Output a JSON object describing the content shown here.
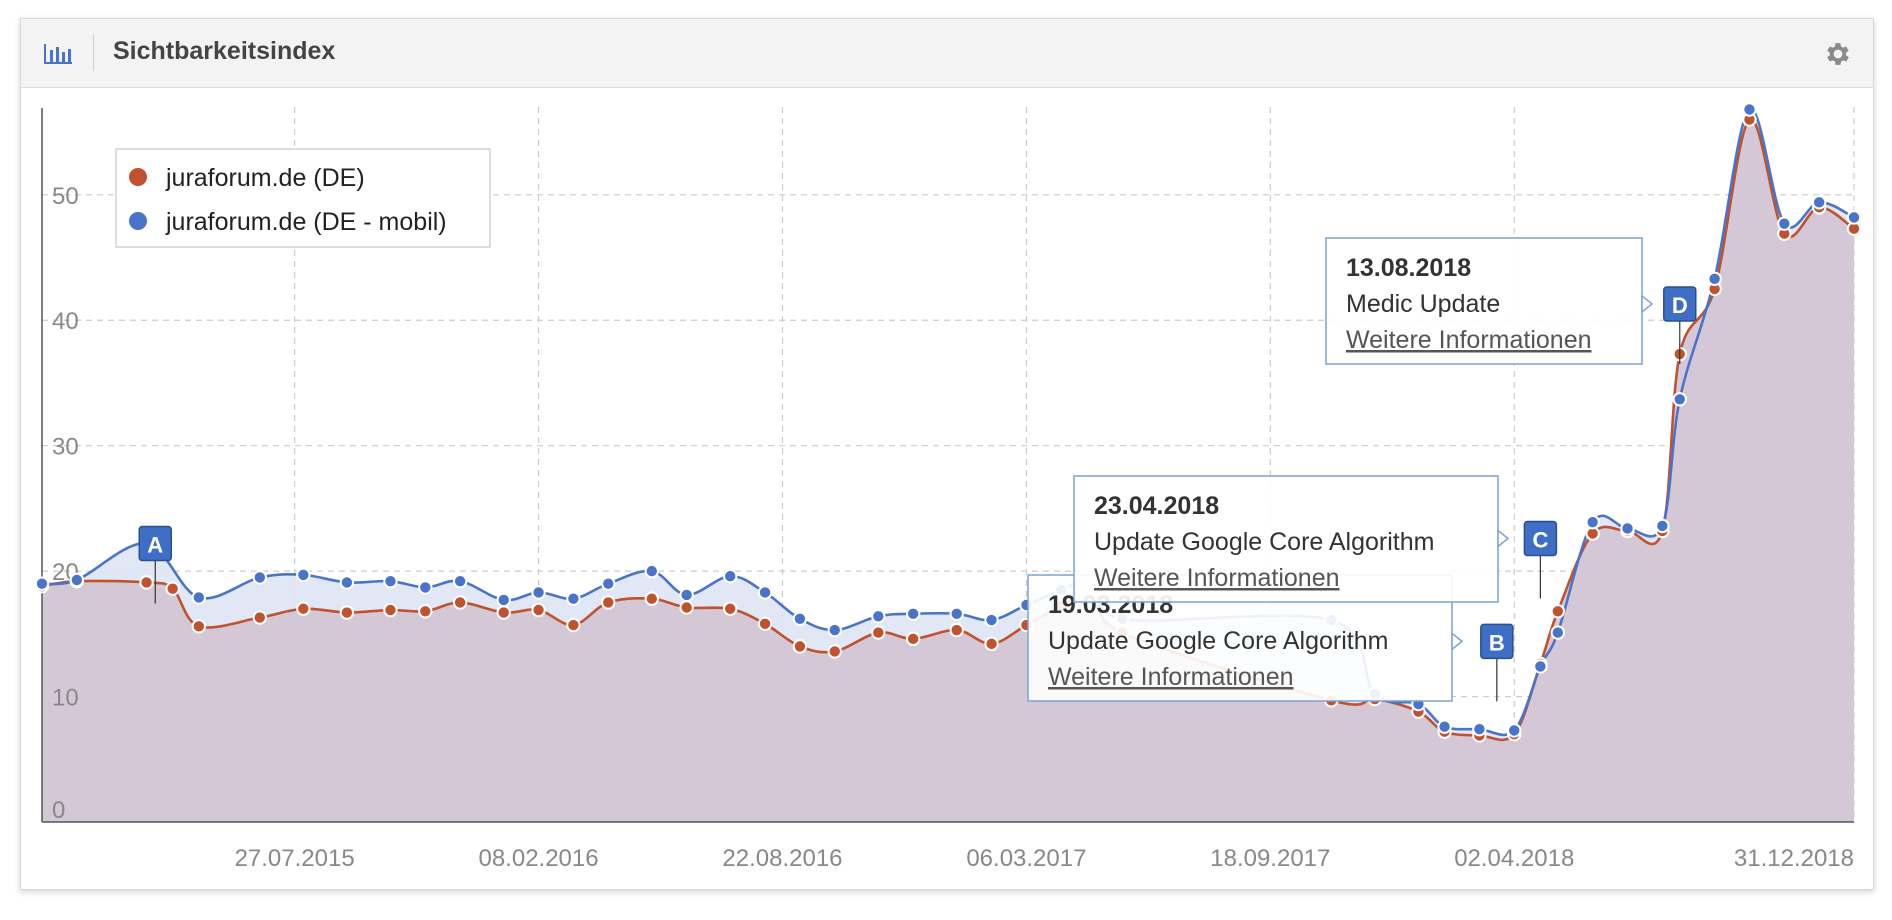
{
  "widget": {
    "title": "Sichtbarkeitsindex",
    "chart_icon": "bar-chart-icon",
    "settings_icon": "gear-icon"
  },
  "colors": {
    "desktop": "#c0522d",
    "mobile": "#4a74c9",
    "area": "#d4c8d6",
    "grid": "#cccccc",
    "axis_text": "#888888"
  },
  "chart_data": {
    "type": "line",
    "title": "Sichtbarkeitsindex",
    "xlabel": "",
    "ylabel": "",
    "ylim": [
      0,
      57
    ],
    "grid": true,
    "legend_position": "top-left",
    "x_tick_labels": [
      "27.07.2015",
      "08.02.2016",
      "22.08.2016",
      "06.03.2017",
      "18.09.2017",
      "02.04.2018",
      "31.12.2018"
    ],
    "y_tick_labels": [
      "0",
      "10",
      "20",
      "30",
      "40",
      "50"
    ],
    "series": [
      {
        "name": "juraforum.de (DE)",
        "points": [
          [
            "2015-01-05",
            18.8
          ],
          [
            "2015-02-02",
            19.2
          ],
          [
            "2015-03-30",
            19.1
          ],
          [
            "2015-04-20",
            18.6
          ],
          [
            "2015-05-11",
            15.6
          ],
          [
            "2015-06-29",
            16.3
          ],
          [
            "2015-08-03",
            17.0
          ],
          [
            "2015-09-07",
            16.7
          ],
          [
            "2015-10-12",
            16.9
          ],
          [
            "2015-11-09",
            16.8
          ],
          [
            "2015-12-07",
            17.5
          ],
          [
            "2016-01-11",
            16.7
          ],
          [
            "2016-02-08",
            16.9
          ],
          [
            "2016-03-07",
            15.7
          ],
          [
            "2016-04-04",
            17.5
          ],
          [
            "2016-05-09",
            17.8
          ],
          [
            "2016-06-06",
            17.1
          ],
          [
            "2016-07-11",
            17.0
          ],
          [
            "2016-08-08",
            15.8
          ],
          [
            "2016-09-05",
            14.0
          ],
          [
            "2016-10-03",
            13.6
          ],
          [
            "2016-11-07",
            15.1
          ],
          [
            "2016-12-05",
            14.6
          ],
          [
            "2017-01-09",
            15.3
          ],
          [
            "2017-02-06",
            14.2
          ],
          [
            "2017-03-06",
            15.7
          ],
          [
            "2017-04-03",
            17.2
          ],
          [
            "2017-05-01",
            18.5
          ],
          [
            "2017-05-22",
            15.1
          ],
          [
            "2017-11-06",
            9.7
          ],
          [
            "2017-12-11",
            9.8
          ],
          [
            "2018-01-15",
            8.8
          ],
          [
            "2018-02-05",
            7.2
          ],
          [
            "2018-03-05",
            6.9
          ],
          [
            "2018-04-02",
            7.0
          ],
          [
            "2018-04-23",
            12.6
          ],
          [
            "2018-05-07",
            16.8
          ],
          [
            "2018-06-04",
            23.0
          ],
          [
            "2018-07-02",
            23.2
          ],
          [
            "2018-07-30",
            23.2
          ],
          [
            "2018-08-13",
            37.3
          ],
          [
            "2018-09-10",
            42.5
          ],
          [
            "2018-10-08",
            56.0
          ],
          [
            "2018-11-05",
            46.9
          ],
          [
            "2018-12-03",
            49.0
          ],
          [
            "2018-12-31",
            47.3
          ]
        ]
      },
      {
        "name": "juraforum.de (DE - mobil)",
        "points": [
          [
            "2015-01-05",
            19.0
          ],
          [
            "2015-02-02",
            19.3
          ],
          [
            "2015-03-30",
            22.2
          ],
          [
            "2015-05-11",
            17.9
          ],
          [
            "2015-06-29",
            19.5
          ],
          [
            "2015-08-03",
            19.7
          ],
          [
            "2015-09-07",
            19.1
          ],
          [
            "2015-10-12",
            19.2
          ],
          [
            "2015-11-09",
            18.7
          ],
          [
            "2015-12-07",
            19.2
          ],
          [
            "2016-01-11",
            17.7
          ],
          [
            "2016-02-08",
            18.3
          ],
          [
            "2016-03-07",
            17.8
          ],
          [
            "2016-04-04",
            19.0
          ],
          [
            "2016-05-09",
            20.0
          ],
          [
            "2016-06-06",
            18.1
          ],
          [
            "2016-07-11",
            19.6
          ],
          [
            "2016-08-08",
            18.3
          ],
          [
            "2016-09-05",
            16.2
          ],
          [
            "2016-10-03",
            15.3
          ],
          [
            "2016-11-07",
            16.4
          ],
          [
            "2016-12-05",
            16.6
          ],
          [
            "2017-01-09",
            16.6
          ],
          [
            "2017-02-06",
            16.1
          ],
          [
            "2017-03-06",
            17.3
          ],
          [
            "2017-04-03",
            18.5
          ],
          [
            "2017-05-01",
            19.4
          ],
          [
            "2017-05-22",
            16.2
          ],
          [
            "2017-11-06",
            16.1
          ],
          [
            "2017-12-11",
            10.2
          ],
          [
            "2018-01-15",
            9.4
          ],
          [
            "2018-02-05",
            7.6
          ],
          [
            "2018-03-05",
            7.4
          ],
          [
            "2018-04-02",
            7.3
          ],
          [
            "2018-04-23",
            12.4
          ],
          [
            "2018-05-07",
            15.1
          ],
          [
            "2018-06-04",
            23.9
          ],
          [
            "2018-07-02",
            23.4
          ],
          [
            "2018-07-30",
            23.6
          ],
          [
            "2018-08-13",
            33.7
          ],
          [
            "2018-09-10",
            43.3
          ],
          [
            "2018-10-08",
            56.8
          ],
          [
            "2018-11-05",
            47.7
          ],
          [
            "2018-12-03",
            49.4
          ],
          [
            "2018-12-31",
            48.2
          ]
        ]
      }
    ],
    "annotations": [
      {
        "marker": "A",
        "x": "2015-04-06",
        "y": 22.2
      },
      {
        "marker": "B",
        "x": "2018-03-19",
        "y": 14.4,
        "date": "19.03.2018",
        "title": "Update Google Core Algorithm",
        "link": "Weitere Informationen"
      },
      {
        "marker": "C",
        "x": "2018-04-23",
        "y": 22.6,
        "date": "23.04.2018",
        "title": "Update Google Core Algorithm",
        "link": "Weitere Informationen"
      },
      {
        "marker": "D",
        "x": "2018-08-13",
        "y": 41.3,
        "date": "13.08.2018",
        "title": "Medic Update",
        "link": "Weitere Informationen"
      }
    ]
  }
}
